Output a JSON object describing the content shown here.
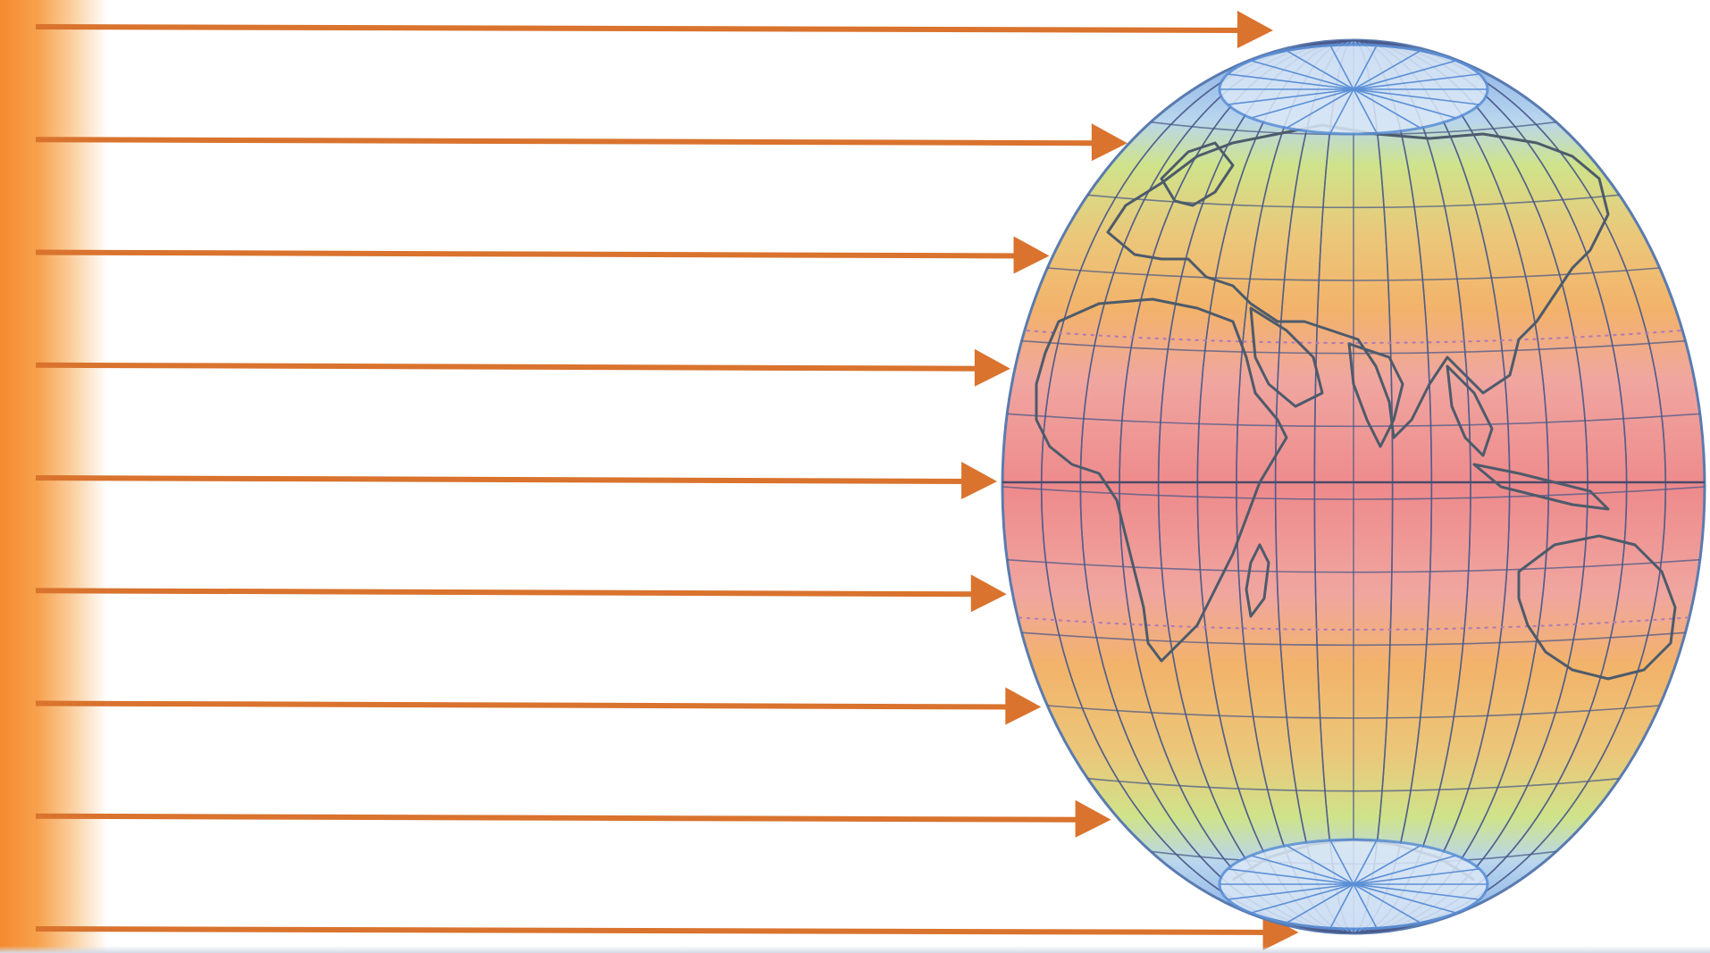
{
  "diagram": {
    "ray_count": 9,
    "colors": {
      "sun": "#f58a2e",
      "ray": "#d9732e",
      "polar": "#5b8fd6",
      "subpolar": "#c9e07a",
      "temperate": "#f2b36a",
      "tropical": "#ee8c8e",
      "grid": "#4a5a8a",
      "coast": "#4a5a6a"
    },
    "zones": [
      "polar-north",
      "temperate-north",
      "tropical",
      "temperate-south",
      "polar-south"
    ]
  }
}
